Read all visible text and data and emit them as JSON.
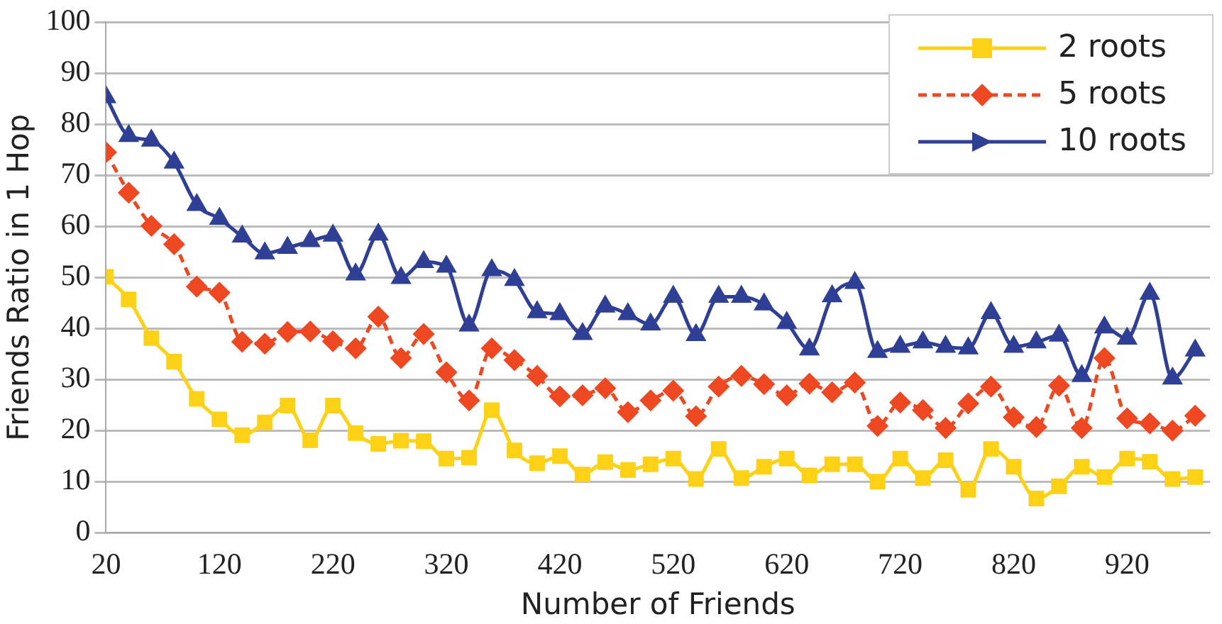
{
  "chart_data": {
    "type": "line",
    "xlabel": "Number of Friends",
    "ylabel": "Friends Ratio in 1 Hop",
    "x": [
      20,
      40,
      60,
      80,
      100,
      120,
      140,
      160,
      180,
      200,
      220,
      240,
      260,
      280,
      300,
      320,
      340,
      360,
      380,
      400,
      420,
      440,
      460,
      480,
      500,
      520,
      540,
      560,
      580,
      600,
      620,
      640,
      660,
      680,
      700,
      720,
      740,
      760,
      780,
      800,
      820,
      840,
      860,
      880,
      900,
      920,
      940,
      960,
      980
    ],
    "xlim": [
      20,
      993
    ],
    "xticks": [
      20,
      120,
      220,
      320,
      420,
      520,
      620,
      720,
      820,
      920
    ],
    "ylim": [
      0,
      100
    ],
    "yticks": [
      0,
      10,
      20,
      30,
      40,
      50,
      60,
      70,
      80,
      90,
      100
    ],
    "grid": "y",
    "legend": "top right",
    "series": [
      {
        "name": "2 roots",
        "color": "#fcd116",
        "marker": "square",
        "line_style": "solid",
        "values": [
          50.1,
          45.7,
          38.1,
          33.5,
          26.2,
          22.2,
          19.1,
          21.6,
          24.9,
          18.1,
          24.9,
          19.5,
          17.4,
          18.0,
          17.9,
          14.5,
          14.7,
          24.0,
          16.1,
          13.6,
          15.0,
          11.4,
          13.8,
          12.3,
          13.4,
          14.5,
          10.5,
          16.4,
          10.7,
          12.9,
          14.5,
          11.2,
          13.4,
          13.4,
          10.0,
          14.5,
          10.7,
          14.2,
          8.4,
          16.4,
          12.9,
          6.7,
          9.1,
          12.9,
          10.9,
          14.5,
          13.9,
          10.5,
          10.9
        ]
      },
      {
        "name": "5 roots",
        "color": "#ee4822",
        "marker": "diamond",
        "line_style": "dashed",
        "values": [
          74.5,
          66.6,
          60.1,
          56.5,
          48.2,
          47.0,
          37.4,
          37.0,
          39.3,
          39.4,
          37.5,
          36.1,
          42.3,
          34.2,
          38.9,
          31.4,
          25.9,
          36.1,
          33.8,
          30.7,
          26.7,
          26.9,
          28.3,
          23.6,
          25.9,
          27.8,
          22.8,
          28.6,
          30.7,
          29.1,
          26.9,
          29.2,
          27.5,
          29.4,
          20.9,
          25.5,
          24.0,
          20.5,
          25.3,
          28.6,
          22.6,
          20.7,
          28.8,
          20.5,
          34.2,
          22.4,
          21.4,
          20.0,
          22.9
        ]
      },
      {
        "name": "10 roots",
        "color": "#2e3f95",
        "marker": "triangle",
        "line_style": "solid",
        "values": [
          85.3,
          77.7,
          76.8,
          72.5,
          64.2,
          61.5,
          58.0,
          54.7,
          55.8,
          57.1,
          58.2,
          50.6,
          58.4,
          49.9,
          53.0,
          52.1,
          40.6,
          51.4,
          49.5,
          43.2,
          42.8,
          38.9,
          44.3,
          42.8,
          40.8,
          46.2,
          38.7,
          46.2,
          46.2,
          44.7,
          41.1,
          35.9,
          46.3,
          48.9,
          35.4,
          36.4,
          37.3,
          36.4,
          36.1,
          43.0,
          36.4,
          37.3,
          38.6,
          30.7,
          40.2,
          38.0,
          46.8,
          30.2,
          35.7
        ]
      }
    ]
  }
}
